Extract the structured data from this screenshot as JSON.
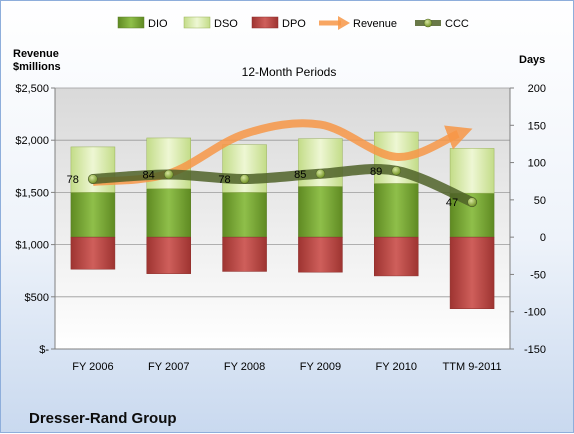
{
  "chart_data": {
    "type": "bar",
    "title": "12-Month Periods",
    "company": "Dresser-Rand Group",
    "categories": [
      "FY 2006",
      "FY 2007",
      "FY 2008",
      "FY 2009",
      "FY 2010",
      "TTM 9-2011"
    ],
    "left_axis": {
      "title_line1": "Revenue",
      "title_line2": "$millions",
      "ylim": [
        0,
        2500
      ],
      "ticks": [
        0,
        500,
        1000,
        1500,
        2000,
        2500
      ],
      "tick_labels": [
        "$-",
        "$500",
        "$1,000",
        "$1,500",
        "$2,000",
        "$2,500"
      ]
    },
    "right_axis": {
      "title": "Days",
      "ylim": [
        -150,
        200
      ],
      "ticks": [
        -150,
        -100,
        -50,
        0,
        50,
        100,
        150,
        200
      ],
      "tick_labels": [
        "-150",
        "-100",
        "-50",
        "0",
        "50",
        "100",
        "150",
        "200"
      ]
    },
    "series": [
      {
        "name": "DIO",
        "axis": "right",
        "kind": "stacked-bar",
        "color": "#7aa33a",
        "values": [
          60,
          65,
          60,
          68,
          72,
          59
        ]
      },
      {
        "name": "DSO",
        "axis": "right",
        "kind": "stacked-bar",
        "color": "#d6e8a8",
        "values": [
          61,
          68,
          64,
          64,
          69,
          60
        ]
      },
      {
        "name": "DPO",
        "axis": "right",
        "kind": "stacked-bar-negative",
        "color": "#c0504d",
        "values": [
          -43,
          -49,
          -46,
          -47,
          -52,
          -96
        ]
      },
      {
        "name": "Revenue",
        "axis": "left",
        "kind": "line",
        "color": "#f79646",
        "values": [
          1600,
          1680,
          2060,
          2150,
          1840,
          2060
        ]
      },
      {
        "name": "CCC",
        "axis": "right",
        "kind": "line",
        "color": "#4f6228",
        "values": [
          78,
          84,
          78,
          85,
          89,
          47
        ]
      }
    ],
    "ccc_labels": [
      "78",
      "84",
      "78",
      "85",
      "89",
      "47"
    ],
    "grid": true,
    "legend_position": "top"
  }
}
